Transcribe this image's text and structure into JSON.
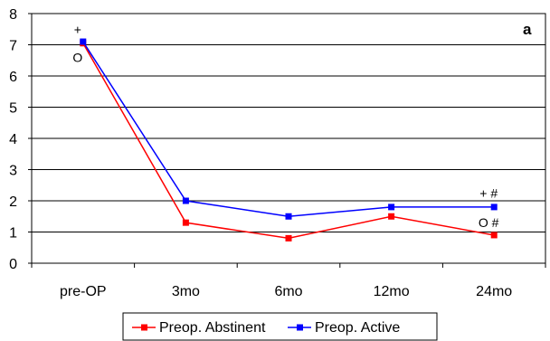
{
  "chart_data": {
    "type": "line",
    "panel_label": "a",
    "categories": [
      "pre-OP",
      "3mo",
      "6mo",
      "12mo",
      "24mo"
    ],
    "ylim": [
      0,
      8
    ],
    "yticks": [
      "0",
      "1",
      "2",
      "3",
      "4",
      "5",
      "6",
      "7",
      "8"
    ],
    "grid": true,
    "legend_position": "bottom",
    "series": [
      {
        "name": "Preop. Abstinent",
        "color": "#ff0000",
        "values": [
          7.05,
          1.3,
          0.8,
          1.5,
          0.9
        ]
      },
      {
        "name": "Preop. Active",
        "color": "#0000ff",
        "values": [
          7.1,
          2.0,
          1.5,
          1.8,
          1.8
        ]
      }
    ],
    "annotations": [
      {
        "text": "+",
        "category": "pre-OP",
        "y": 7.5
      },
      {
        "text": "O",
        "category": "pre-OP",
        "y": 6.6
      },
      {
        "text": "+ #",
        "category": "24mo",
        "y": 2.25
      },
      {
        "text": "O #",
        "category": "24mo",
        "y": 1.3
      }
    ]
  }
}
